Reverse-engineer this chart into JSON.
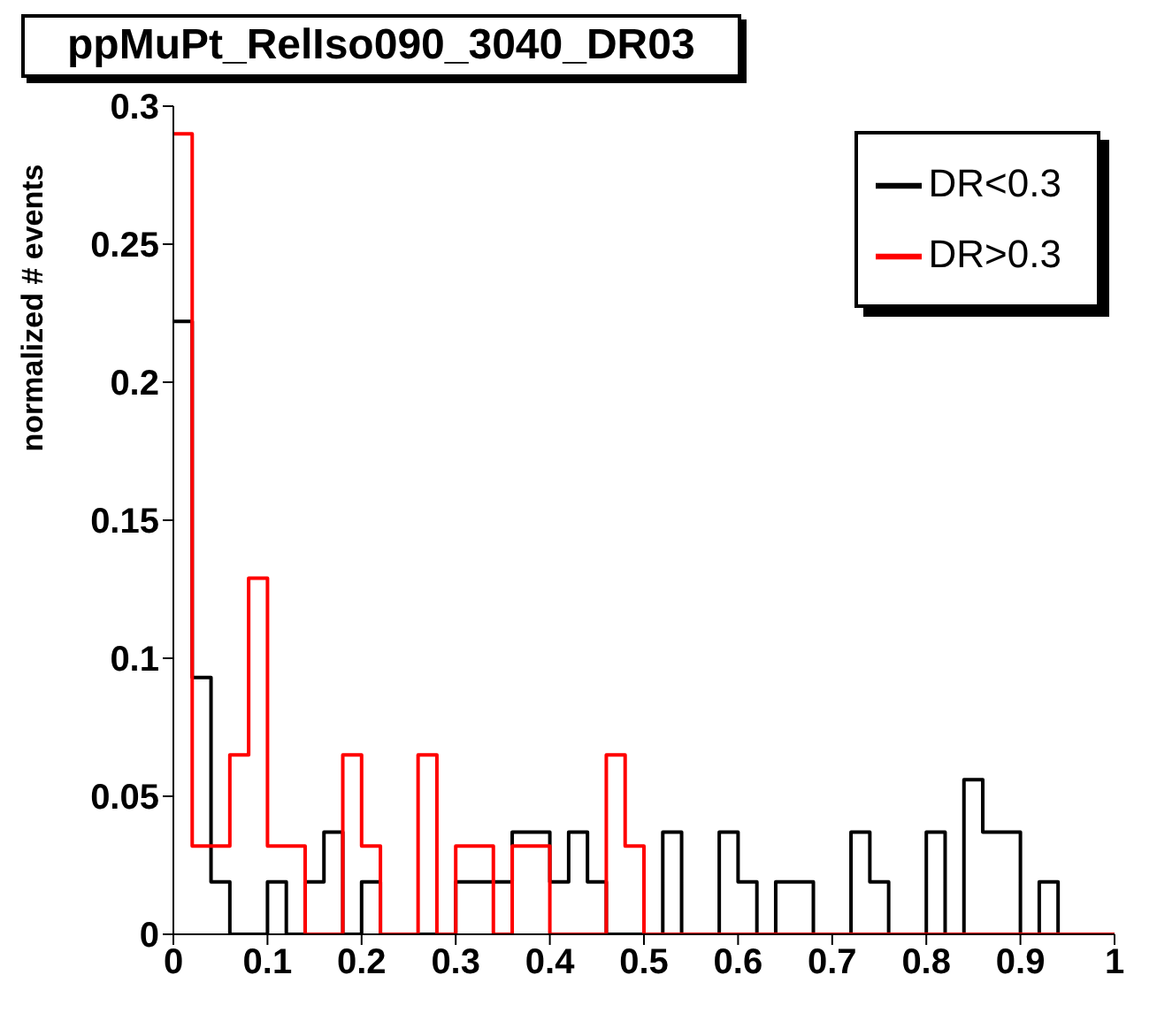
{
  "chart_data": {
    "type": "histogram",
    "title": "ppMuPt_RelIso090_3040_DR03",
    "ylabel": "normalized # events",
    "bins": [
      0,
      0.02,
      0.04,
      0.06,
      0.08,
      0.1,
      0.12,
      0.14,
      0.16,
      0.18,
      0.2,
      0.22,
      0.24,
      0.26,
      0.28,
      0.3,
      0.32,
      0.34,
      0.36,
      0.38,
      0.4,
      0.42,
      0.44,
      0.46,
      0.48,
      0.5,
      0.52,
      0.54,
      0.56,
      0.58,
      0.6,
      0.62,
      0.64,
      0.66,
      0.68,
      0.7,
      0.72,
      0.74,
      0.76,
      0.78,
      0.8,
      0.82,
      0.84,
      0.86,
      0.88,
      0.9,
      0.92,
      0.94,
      0.96,
      0.98,
      1
    ],
    "series": [
      {
        "name": "DR<0.3",
        "color": "#000000",
        "values": [
          0.222,
          0.093,
          0.019,
          0,
          0,
          0.019,
          0,
          0.019,
          0.037,
          0,
          0.019,
          0,
          0,
          0,
          0,
          0.019,
          0.019,
          0.019,
          0.037,
          0.037,
          0.019,
          0.037,
          0.019,
          0,
          0,
          0,
          0.037,
          0,
          0,
          0.037,
          0.019,
          0,
          0.019,
          0.019,
          0,
          0,
          0.037,
          0.019,
          0,
          0,
          0.037,
          0,
          0.056,
          0.037,
          0.037,
          0,
          0.019,
          0,
          0,
          0
        ]
      },
      {
        "name": "DR>0.3",
        "color": "#ff0000",
        "values": [
          0.29,
          0.032,
          0.032,
          0.065,
          0.129,
          0.032,
          0.032,
          0,
          0,
          0.065,
          0.032,
          0,
          0,
          0.065,
          0,
          0.032,
          0.032,
          0,
          0.032,
          0.032,
          0,
          0,
          0,
          0.065,
          0.032,
          0,
          0,
          0,
          0,
          0,
          0,
          0,
          0,
          0,
          0,
          0,
          0,
          0,
          0,
          0,
          0,
          0,
          0,
          0,
          0,
          0,
          0,
          0,
          0,
          0
        ]
      }
    ],
    "xlim": [
      0,
      1
    ],
    "xticks": [
      0,
      0.1,
      0.2,
      0.3,
      0.4,
      0.5,
      0.6,
      0.7,
      0.8,
      0.9,
      1
    ],
    "ylim": [
      0,
      0.3
    ],
    "yticks": [
      0,
      0.05,
      0.1,
      0.15,
      0.2,
      0.25,
      0.3
    ],
    "legend": "top right",
    "grid": false
  }
}
